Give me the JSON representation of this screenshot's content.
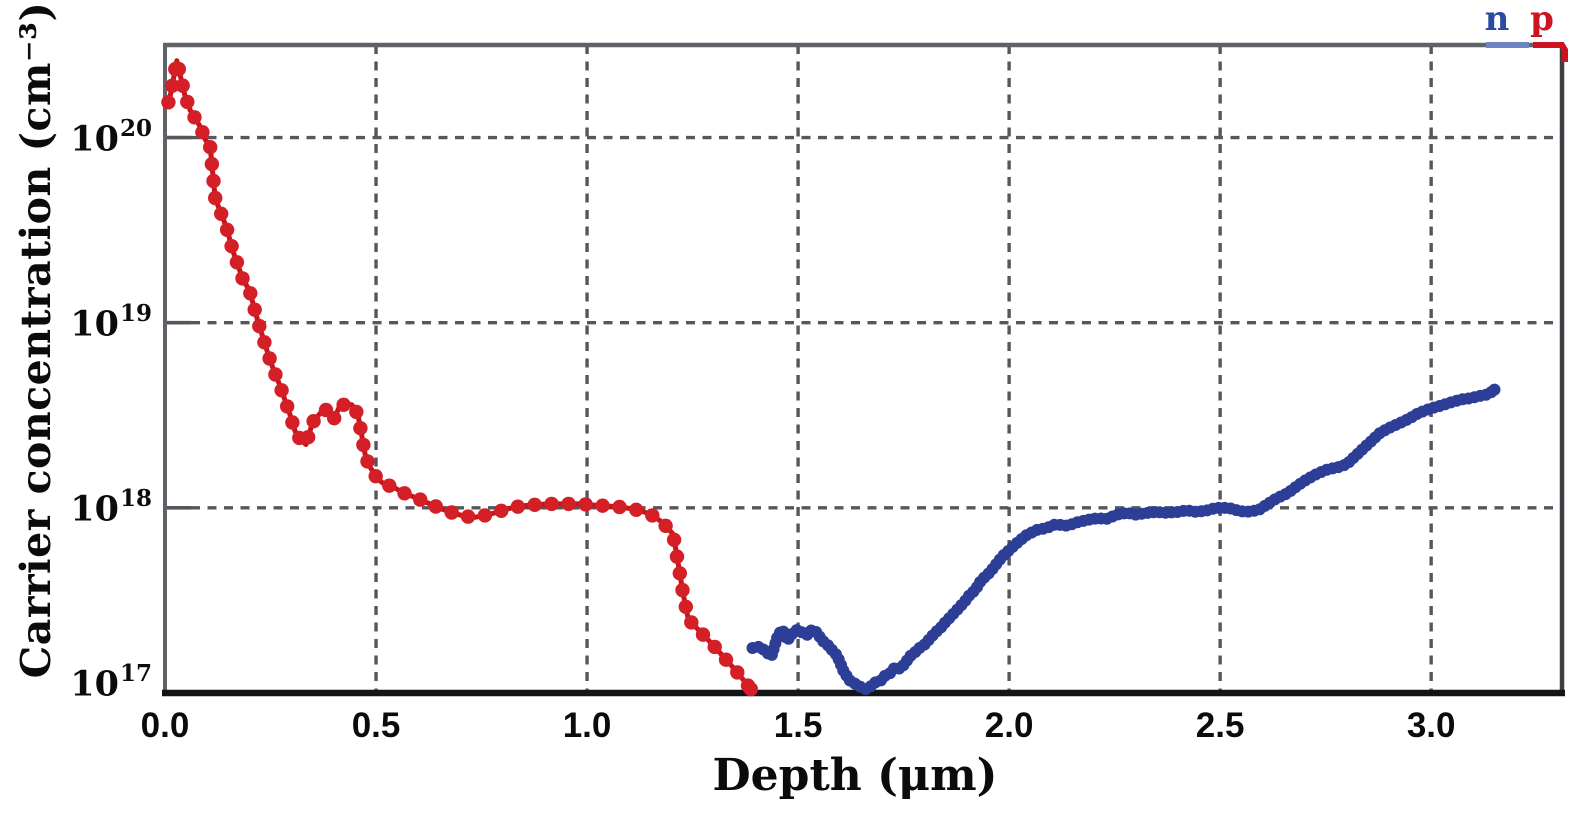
{
  "colors": {
    "background": "#ffffff",
    "grid": "#54585c",
    "frame_top_left": "#5f6367",
    "frame_right": "#3c4044",
    "axis_bottom": "#141517",
    "text": "#0b0b0c",
    "n_blue": "#2c3e96",
    "n_line": "#27367f",
    "n_legend_text": "#2b4aa0",
    "n_swatch": "#6f85c3",
    "p_red": "#d51f26",
    "p_line": "#c2151c",
    "p_legend_text": "#cc1420"
  },
  "chart_data": {
    "type": "scatter",
    "title": "",
    "xlabel": "Depth (μm)",
    "ylabel": "Carrier concentration (cm⁻³)",
    "grid": "dashed",
    "x_axis": {
      "min": 0.0,
      "max": 3.31,
      "tick_step": 0.5
    },
    "y_axis": {
      "scale": "log",
      "min_log10": 17,
      "max_log10": 20.5
    },
    "x_ticks": [
      "0.0",
      "0.5",
      "1.0",
      "1.5",
      "2.0",
      "2.5",
      "3.0"
    ],
    "y_ticks": [
      {
        "base": "10",
        "exp": "20"
      },
      {
        "base": "10",
        "exp": "19"
      },
      {
        "base": "10",
        "exp": "18"
      },
      {
        "base": "10",
        "exp": "17"
      }
    ],
    "legend": {
      "position": "top-right",
      "items": [
        {
          "label": "n",
          "series": "n"
        },
        {
          "label": "p",
          "series": "p"
        }
      ]
    },
    "series": [
      {
        "name": "p",
        "carrier_type": "p-type",
        "style": {
          "dot_radius": 7.2,
          "dot_spacing_px": 17,
          "line_width": 5
        },
        "points": [
          [
            0.008,
            1.55e+20
          ],
          [
            0.014,
            1.75e+20
          ],
          [
            0.028,
            2.6e+20
          ],
          [
            0.047,
            1.7e+20
          ],
          [
            0.06,
            1.4e+20
          ],
          [
            0.083,
            1.15e+20
          ],
          [
            0.095,
            9.8e+19
          ],
          [
            0.107,
            8.9e+19
          ],
          [
            0.119,
            4.7e+19
          ],
          [
            0.145,
            3.3e+19
          ],
          [
            0.162,
            2.4e+19
          ],
          [
            0.185,
            1.7e+19
          ],
          [
            0.2,
            1.5e+19
          ],
          [
            0.221,
            1e+19
          ],
          [
            0.244,
            6.8e+18
          ],
          [
            0.258,
            5.5e+18
          ],
          [
            0.272,
            4.6e+18
          ],
          [
            0.296,
            3.2e+18
          ],
          [
            0.308,
            2.6e+18
          ],
          [
            0.32,
            2.35e+18
          ],
          [
            0.334,
            2.2e+18
          ],
          [
            0.35,
            2.9e+18
          ],
          [
            0.368,
            3.25e+18
          ],
          [
            0.384,
            3.4e+18
          ],
          [
            0.398,
            2.95e+18
          ],
          [
            0.413,
            3.5e+18
          ],
          [
            0.428,
            3.65e+18
          ],
          [
            0.443,
            3.6e+18
          ],
          [
            0.457,
            3.2e+18
          ],
          [
            0.474,
            1.95e+18
          ],
          [
            0.483,
            1.7e+18
          ],
          [
            0.502,
            1.45e+18
          ],
          [
            0.516,
            1.36e+18
          ],
          [
            0.545,
            1.28e+18
          ],
          [
            0.57,
            1.19e+18
          ],
          [
            0.592,
            1.14e+18
          ],
          [
            0.616,
            1.08e+18
          ],
          [
            0.64,
            1.02e+18
          ],
          [
            0.664,
            9.7e+17
          ],
          [
            0.688,
            9.3e+17
          ],
          [
            0.711,
            9e+17
          ],
          [
            0.735,
            8.9e+17
          ],
          [
            0.758,
            9.1e+17
          ],
          [
            0.782,
            9.4e+17
          ],
          [
            0.806,
            9.8e+17
          ],
          [
            0.83,
            1.01e+18
          ],
          [
            0.855,
            1.03e+18
          ],
          [
            0.88,
            1.04e+18
          ],
          [
            0.905,
            1.05e+18
          ],
          [
            0.93,
            1.05e+18
          ],
          [
            0.955,
            1.05e+18
          ],
          [
            0.98,
            1.05e+18
          ],
          [
            1.005,
            1.04e+18
          ],
          [
            1.03,
            1.03e+18
          ],
          [
            1.055,
            1.02e+18
          ],
          [
            1.08,
            1.01e+18
          ],
          [
            1.105,
            9.9e+17
          ],
          [
            1.13,
            9.6e+17
          ],
          [
            1.155,
            9.1e+17
          ],
          [
            1.18,
            8.3e+17
          ],
          [
            1.204,
            7.2e+17
          ],
          [
            1.216,
            5e+17
          ],
          [
            1.228,
            3.4e+17
          ],
          [
            1.24,
            2.5e+17
          ],
          [
            1.3,
            1.8e+17
          ],
          [
            1.355,
            1.3e+17
          ],
          [
            1.388,
            1.05e+17
          ]
        ]
      },
      {
        "name": "n",
        "carrier_type": "n-type",
        "style": {
          "dot_radius": 6,
          "dot_spacing_px": 6,
          "line_width": 5
        },
        "points": [
          [
            1.392,
            1.75e+17
          ],
          [
            1.41,
            1.78e+17
          ],
          [
            1.425,
            1.66e+17
          ],
          [
            1.437,
            1.58e+17
          ],
          [
            1.452,
            2.05e+17
          ],
          [
            1.463,
            2.2e+17
          ],
          [
            1.474,
            1.92e+17
          ],
          [
            1.487,
            2.1e+17
          ],
          [
            1.498,
            2.2e+17
          ],
          [
            1.51,
            2.12e+17
          ],
          [
            1.522,
            2.06e+17
          ],
          [
            1.533,
            2.2e+17
          ],
          [
            1.545,
            2.12e+17
          ],
          [
            1.557,
            1.92e+17
          ],
          [
            1.569,
            1.83e+17
          ],
          [
            1.581,
            1.7e+17
          ],
          [
            1.592,
            1.6e+17
          ],
          [
            1.6,
            1.45e+17
          ],
          [
            1.608,
            1.31e+17
          ],
          [
            1.616,
            1.23e+17
          ],
          [
            1.625,
            1.15e+17
          ],
          [
            1.636,
            1.12e+17
          ],
          [
            1.648,
            1.08e+17
          ],
          [
            1.66,
            1.05e+17
          ],
          [
            1.671,
            1.08e+17
          ],
          [
            1.683,
            1.14e+17
          ],
          [
            1.695,
            1.16e+17
          ],
          [
            1.706,
            1.24e+17
          ],
          [
            1.718,
            1.28e+17
          ],
          [
            1.73,
            1.38e+17
          ],
          [
            1.742,
            1.35e+17
          ],
          [
            1.753,
            1.44e+17
          ],
          [
            1.765,
            1.58e+17
          ],
          [
            1.777,
            1.66e+17
          ],
          [
            1.789,
            1.76e+17
          ],
          [
            1.8,
            1.83e+17
          ],
          [
            1.813,
            1.98e+17
          ],
          [
            1.825,
            2.12e+17
          ],
          [
            1.836,
            2.22e+17
          ],
          [
            1.848,
            2.4e+17
          ],
          [
            1.86,
            2.56e+17
          ],
          [
            1.872,
            2.74e+17
          ],
          [
            1.884,
            2.93e+17
          ],
          [
            1.896,
            3.15e+17
          ],
          [
            1.907,
            3.4e+17
          ],
          [
            1.92,
            3.6e+17
          ],
          [
            1.93,
            3.95e+17
          ],
          [
            1.943,
            4.25e+17
          ],
          [
            1.955,
            4.5e+17
          ],
          [
            1.966,
            4.85e+17
          ],
          [
            1.978,
            5.25e+17
          ],
          [
            1.99,
            5.65e+17
          ],
          [
            2.0,
            5.9e+17
          ],
          [
            2.02,
            6.5e+17
          ],
          [
            2.04,
            7.1e+17
          ],
          [
            2.066,
            7.6e+17
          ],
          [
            2.09,
            7.8e+17
          ],
          [
            2.11,
            8.15e+17
          ],
          [
            2.14,
            8e+17
          ],
          [
            2.16,
            8.35e+17
          ],
          [
            2.185,
            8.6e+17
          ],
          [
            2.21,
            8.8e+17
          ],
          [
            2.23,
            8.7e+17
          ],
          [
            2.256,
            9.2e+17
          ],
          [
            2.28,
            9.4e+17
          ],
          [
            2.3,
            9.2e+17
          ],
          [
            2.33,
            9.4e+17
          ],
          [
            2.35,
            9.5e+17
          ],
          [
            2.37,
            9.4e+17
          ],
          [
            2.4,
            9.5e+17
          ],
          [
            2.42,
            9.7e+17
          ],
          [
            2.445,
            9.5e+17
          ],
          [
            2.47,
            9.7e+17
          ],
          [
            2.49,
            1e+18
          ],
          [
            2.52,
            1e+18
          ],
          [
            2.54,
            9.7e+17
          ],
          [
            2.56,
            9.5e+17
          ],
          [
            2.59,
            9.7e+17
          ],
          [
            2.61,
            1.04e+18
          ],
          [
            2.635,
            1.13e+18
          ],
          [
            2.66,
            1.2e+18
          ],
          [
            2.68,
            1.3e+18
          ],
          [
            2.7,
            1.4e+18
          ],
          [
            2.73,
            1.53e+18
          ],
          [
            2.75,
            1.6e+18
          ],
          [
            2.78,
            1.66e+18
          ],
          [
            2.8,
            1.72e+18
          ],
          [
            2.84,
            2.1e+18
          ],
          [
            2.88,
            2.55e+18
          ],
          [
            2.9,
            2.7e+18
          ],
          [
            2.93,
            2.9e+18
          ],
          [
            2.95,
            3.05e+18
          ],
          [
            2.97,
            3.25e+18
          ],
          [
            2.985,
            3.35e+18
          ],
          [
            3.0,
            3.45e+18
          ],
          [
            3.02,
            3.55e+18
          ],
          [
            3.045,
            3.7e+18
          ],
          [
            3.07,
            3.85e+18
          ],
          [
            3.09,
            3.9e+18
          ],
          [
            3.11,
            4e+18
          ],
          [
            3.135,
            4.1e+18
          ],
          [
            3.15,
            4.35e+18
          ]
        ]
      }
    ]
  }
}
